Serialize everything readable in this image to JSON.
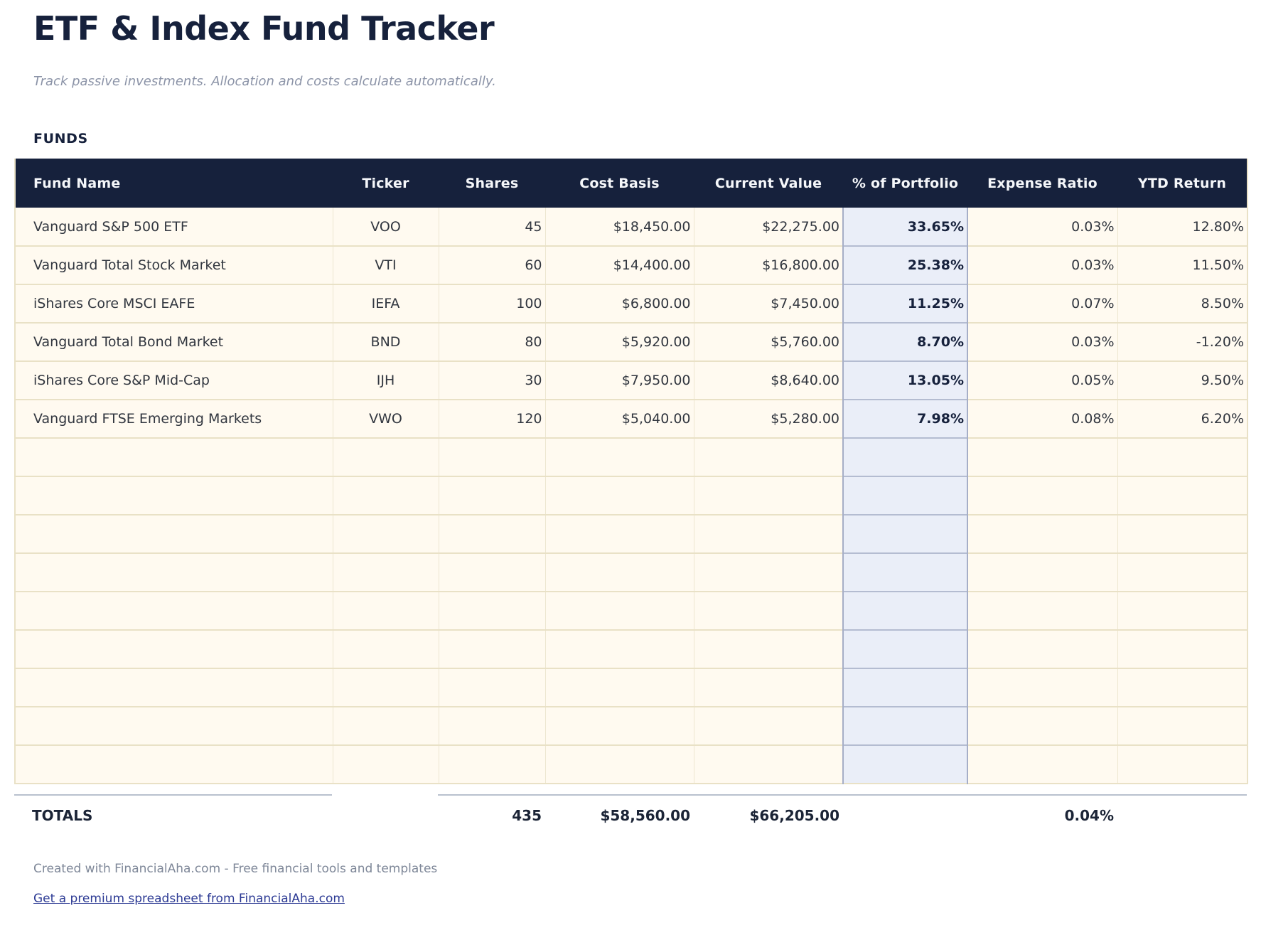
{
  "page": {
    "title": "ETF & Index Fund Tracker",
    "subtitle": "Track passive investments. Allocation and costs calculate automatically.",
    "section_label": "FUNDS"
  },
  "table": {
    "columns": [
      {
        "label": "Fund Name",
        "align": "left",
        "header_align": "left"
      },
      {
        "label": "Ticker",
        "align": "center",
        "header_align": "center"
      },
      {
        "label": "Shares",
        "align": "right",
        "header_align": "center"
      },
      {
        "label": "Cost Basis",
        "align": "right",
        "header_align": "center"
      },
      {
        "label": "Current Value",
        "align": "right",
        "header_align": "center"
      },
      {
        "label": "% of Portfolio",
        "align": "right",
        "header_align": "center",
        "highlighted": true
      },
      {
        "label": "Expense Ratio",
        "align": "right",
        "header_align": "center"
      },
      {
        "label": "YTD Return",
        "align": "right",
        "header_align": "center"
      }
    ],
    "rows": [
      [
        "Vanguard S&P 500 ETF",
        "VOO",
        "45",
        "$18,450.00",
        "$22,275.00",
        "33.65%",
        "0.03%",
        "12.80%"
      ],
      [
        "Vanguard Total Stock Market",
        "VTI",
        "60",
        "$14,400.00",
        "$16,800.00",
        "25.38%",
        "0.03%",
        "11.50%"
      ],
      [
        "iShares Core MSCI EAFE",
        "IEFA",
        "100",
        "$6,800.00",
        "$7,450.00",
        "11.25%",
        "0.07%",
        "8.50%"
      ],
      [
        "Vanguard Total Bond Market",
        "BND",
        "80",
        "$5,920.00",
        "$5,760.00",
        "8.70%",
        "0.03%",
        "-1.20%"
      ],
      [
        "iShares Core S&P Mid-Cap",
        "IJH",
        "30",
        "$7,950.00",
        "$8,640.00",
        "13.05%",
        "0.05%",
        "9.50%"
      ],
      [
        "Vanguard FTSE Emerging Markets",
        "VWO",
        "120",
        "$5,040.00",
        "$5,280.00",
        "7.98%",
        "0.08%",
        "6.20%"
      ]
    ],
    "empty_row_count": 9
  },
  "totals": {
    "values": [
      "TOTALS",
      "",
      "435",
      "$58,560.00",
      "$66,205.00",
      "",
      "0.04%",
      ""
    ]
  },
  "footer": {
    "credit": "Created with FinancialAha.com - Free financial tools and templates",
    "link": "Get a premium spreadsheet from FinancialAha.com"
  },
  "colors": {
    "navy": "#16213C",
    "row_cream": "#FFFAF0",
    "grid_tan": "#E9E1C6",
    "highlight_bg": "#EAEEF8",
    "highlight_border": "#A6AEC7",
    "totals_separator": "#B9C1CE",
    "subtitle_gray": "#8B93A7",
    "footer_gray": "#7E8798",
    "link_blue": "#2C3A94"
  }
}
